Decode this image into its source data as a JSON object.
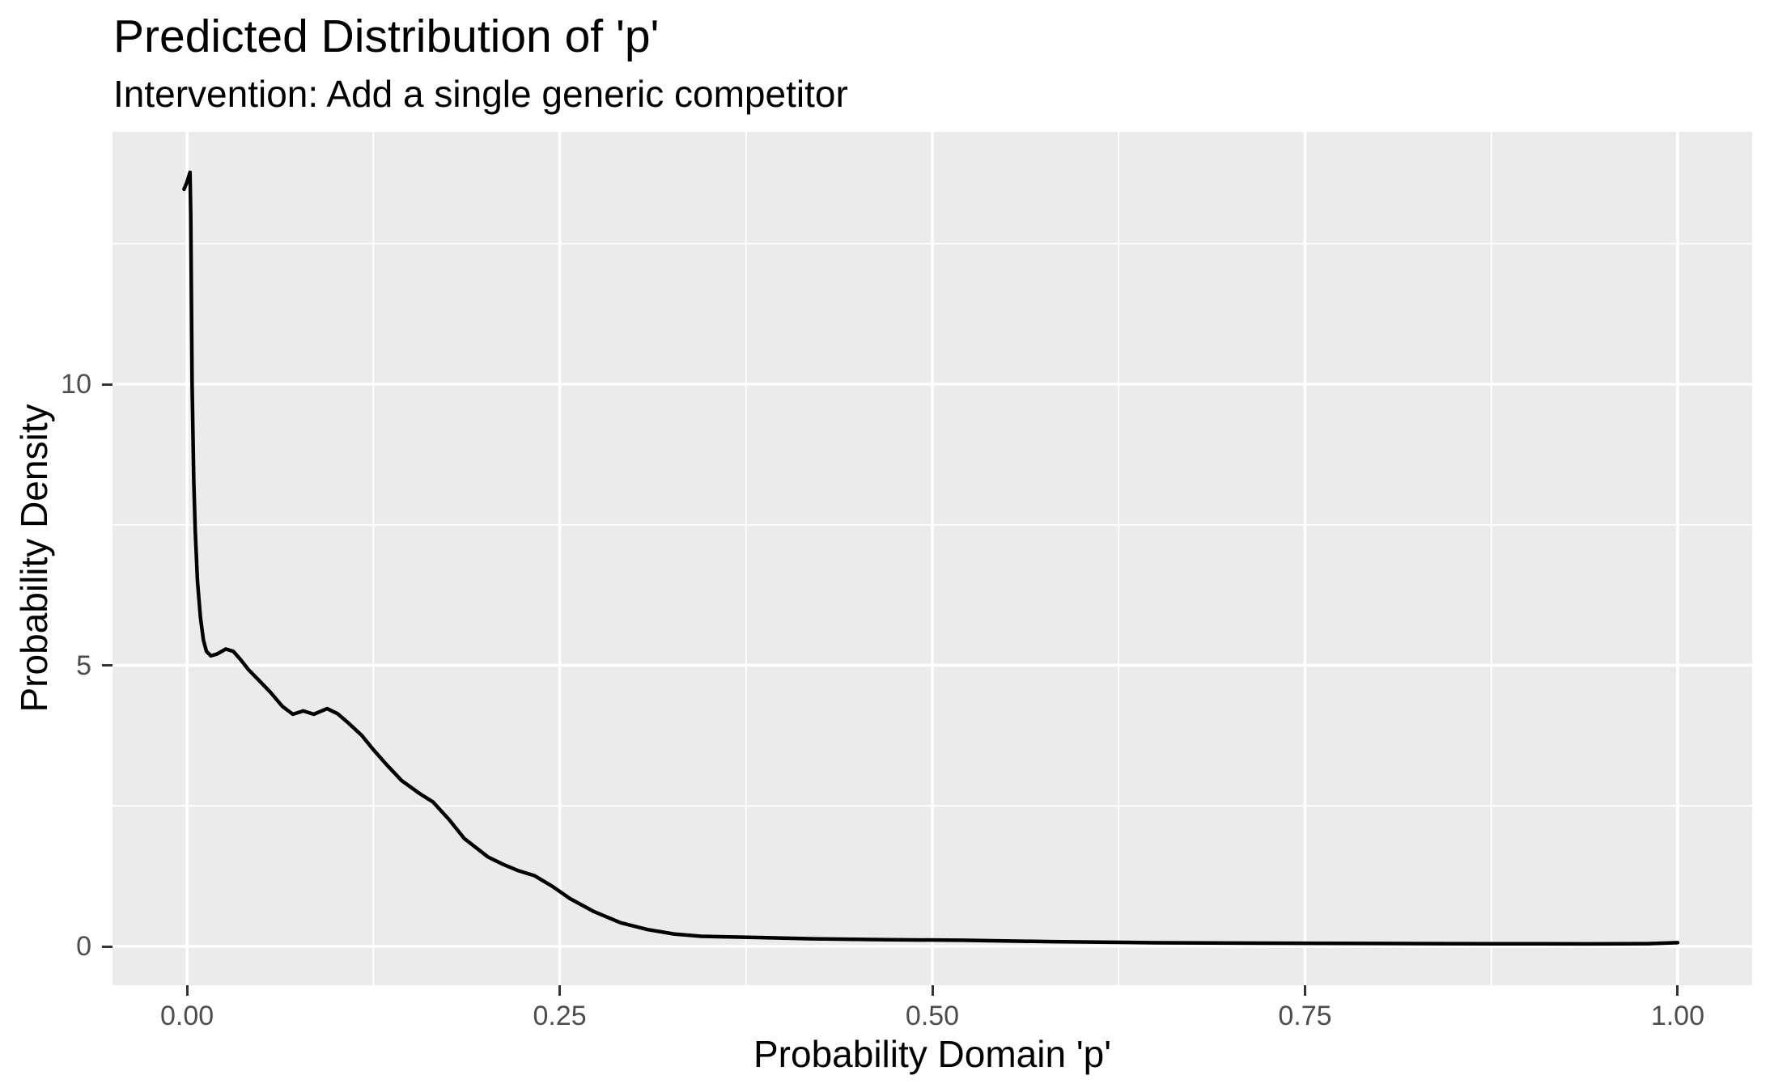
{
  "title": "Predicted Distribution of 'p'",
  "subtitle": "Intervention: Add a single generic competitor",
  "chart_data": {
    "type": "line",
    "title": "Predicted Distribution of 'p'",
    "subtitle": "Intervention: Add a single generic competitor",
    "xlabel": "Probability Domain 'p'",
    "ylabel": "Probability Density",
    "xlim": [
      0,
      1
    ],
    "ylim": [
      0,
      13.8
    ],
    "expansion": 0.05,
    "grid": true,
    "legend_position": "none",
    "x_ticks": [
      {
        "value": 0.0,
        "label": "0.00"
      },
      {
        "value": 0.25,
        "label": "0.25"
      },
      {
        "value": 0.5,
        "label": "0.50"
      },
      {
        "value": 0.75,
        "label": "0.75"
      },
      {
        "value": 1.0,
        "label": "1.00"
      }
    ],
    "y_ticks": [
      {
        "value": 0,
        "label": "0"
      },
      {
        "value": 5,
        "label": "5"
      },
      {
        "value": 10,
        "label": "10"
      }
    ],
    "x_minor_breaks": [
      0.125,
      0.375,
      0.625,
      0.875
    ],
    "y_minor_breaks": [
      2.5,
      7.5,
      12.5
    ],
    "series": [
      {
        "name": "predicted-density-of-p",
        "color": "#000000",
        "points": [
          [
            -0.002,
            13.47
          ],
          [
            0.0,
            13.6
          ],
          [
            0.002,
            13.77
          ],
          [
            0.0025,
            13.0
          ],
          [
            0.0034,
            10.0
          ],
          [
            0.0045,
            8.3
          ],
          [
            0.0055,
            7.4
          ],
          [
            0.007,
            6.5
          ],
          [
            0.009,
            5.85
          ],
          [
            0.011,
            5.45
          ],
          [
            0.013,
            5.25
          ],
          [
            0.016,
            5.17
          ],
          [
            0.02,
            5.2
          ],
          [
            0.026,
            5.29
          ],
          [
            0.031,
            5.25
          ],
          [
            0.036,
            5.1
          ],
          [
            0.041,
            4.93
          ],
          [
            0.048,
            4.74
          ],
          [
            0.056,
            4.52
          ],
          [
            0.064,
            4.27
          ],
          [
            0.071,
            4.13
          ],
          [
            0.078,
            4.19
          ],
          [
            0.085,
            4.13
          ],
          [
            0.094,
            4.23
          ],
          [
            0.101,
            4.14
          ],
          [
            0.108,
            3.98
          ],
          [
            0.117,
            3.76
          ],
          [
            0.125,
            3.5
          ],
          [
            0.134,
            3.23
          ],
          [
            0.144,
            2.95
          ],
          [
            0.156,
            2.72
          ],
          [
            0.165,
            2.57
          ],
          [
            0.176,
            2.25
          ],
          [
            0.186,
            1.92
          ],
          [
            0.202,
            1.59
          ],
          [
            0.212,
            1.46
          ],
          [
            0.222,
            1.35
          ],
          [
            0.233,
            1.26
          ],
          [
            0.245,
            1.07
          ],
          [
            0.257,
            0.85
          ],
          [
            0.273,
            0.62
          ],
          [
            0.291,
            0.42
          ],
          [
            0.309,
            0.3
          ],
          [
            0.327,
            0.22
          ],
          [
            0.345,
            0.18
          ],
          [
            0.38,
            0.16
          ],
          [
            0.42,
            0.135
          ],
          [
            0.47,
            0.12
          ],
          [
            0.52,
            0.11
          ],
          [
            0.58,
            0.085
          ],
          [
            0.65,
            0.066
          ],
          [
            0.72,
            0.058
          ],
          [
            0.8,
            0.052
          ],
          [
            0.88,
            0.048
          ],
          [
            0.94,
            0.046
          ],
          [
            0.98,
            0.05
          ],
          [
            1.0,
            0.068
          ]
        ]
      }
    ],
    "colors": {
      "panel_background": "#EBEBEB",
      "gridline": "#FFFFFF",
      "tick_mark": "#333333",
      "tick_label": "#4D4D4D",
      "text": "#000000",
      "line": "#000000"
    }
  }
}
